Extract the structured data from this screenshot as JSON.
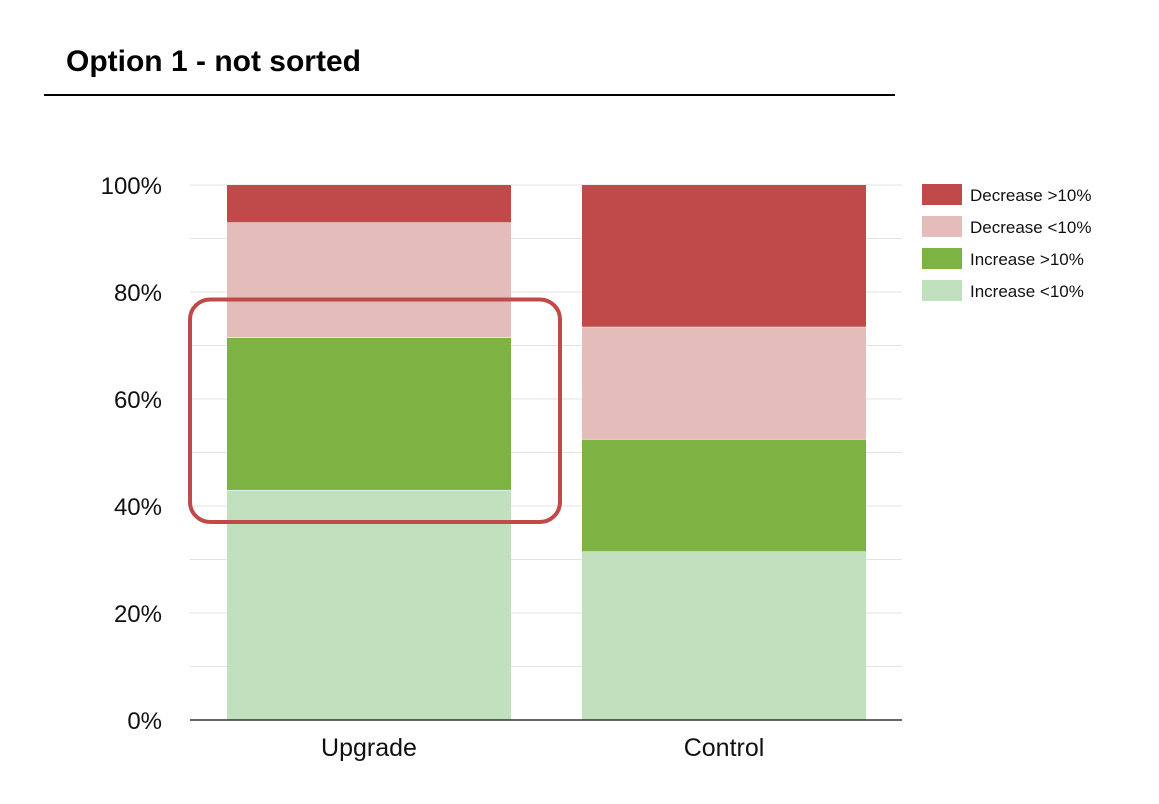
{
  "title": "Option 1 - not sorted",
  "chart_data": {
    "type": "bar",
    "stacked": true,
    "title": "Option 1 - not sorted",
    "xlabel": "",
    "ylabel": "",
    "ylim": [
      0,
      100
    ],
    "y_ticks": [
      0,
      20,
      40,
      60,
      80,
      100
    ],
    "y_tick_labels": [
      "0%",
      "20%",
      "40%",
      "60%",
      "80%",
      "100%"
    ],
    "y_unit": "%",
    "grid": true,
    "legend_position": "right",
    "categories": [
      "Upgrade",
      "Control"
    ],
    "series": [
      {
        "name": "Increase <10%",
        "color": "#c1e0bd",
        "values": [
          43,
          31.5
        ]
      },
      {
        "name": "Increase >10%",
        "color": "#7db343",
        "values": [
          28.5,
          21
        ]
      },
      {
        "name": "Decrease <10%",
        "color": "#e4bcba",
        "values": [
          21.5,
          21
        ]
      },
      {
        "name": "Decrease >10%",
        "color": "#c0494a",
        "values": [
          7,
          26.5
        ]
      }
    ],
    "legend_order": [
      "Decrease >10%",
      "Decrease <10%",
      "Increase >10%",
      "Increase <10%"
    ],
    "annotation": {
      "type": "highlight-box",
      "category": "Upgrade",
      "series": "Increase >10%",
      "color": "#c0494a"
    }
  }
}
